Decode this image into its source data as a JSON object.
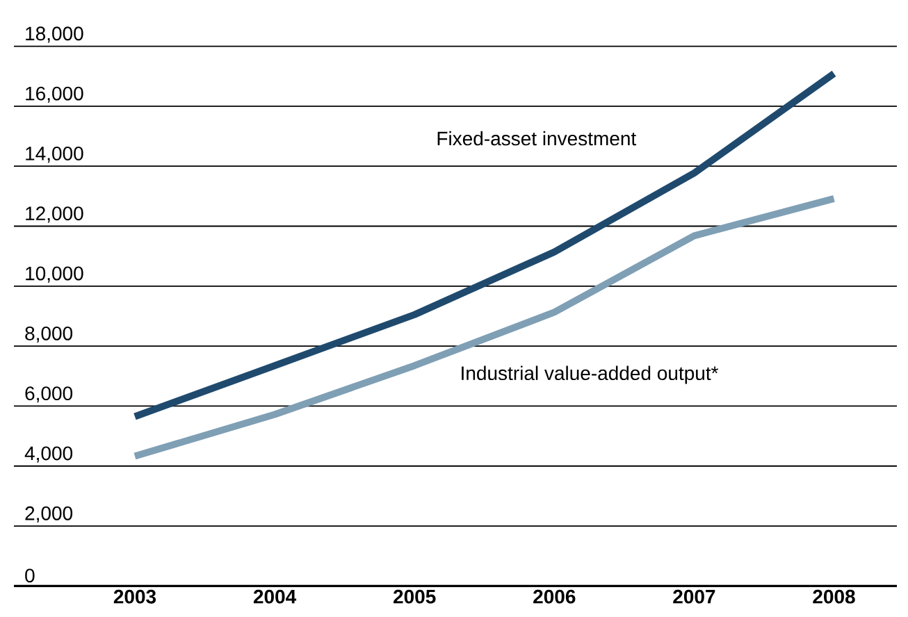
{
  "chart_data": {
    "type": "line",
    "categories": [
      "2003",
      "2004",
      "2005",
      "2006",
      "2007",
      "2008"
    ],
    "series": [
      {
        "name": "Fixed-asset investment",
        "color": "#1f4a6e",
        "values": [
          5650,
          7350,
          9050,
          11140,
          13770,
          17090
        ]
      },
      {
        "name": "Industrial value-added output*",
        "color": "#7f9fb5",
        "values": [
          4330,
          5720,
          7350,
          9130,
          11680,
          12920
        ]
      }
    ],
    "ylim": [
      0,
      18000
    ],
    "yticks": [
      {
        "value": 0,
        "label": "0"
      },
      {
        "value": 2000,
        "label": "2,000"
      },
      {
        "value": 4000,
        "label": "4,000"
      },
      {
        "value": 6000,
        "label": "6,000"
      },
      {
        "value": 8000,
        "label": "8,000"
      },
      {
        "value": 10000,
        "label": "10,000"
      },
      {
        "value": 12000,
        "label": "12,000"
      },
      {
        "value": 14000,
        "label": "14,000"
      },
      {
        "value": 16000,
        "label": "16,000"
      },
      {
        "value": 18000,
        "label": "18,000"
      }
    ],
    "grid": "y",
    "legend": false,
    "marker": "none",
    "line_style": "solid"
  }
}
